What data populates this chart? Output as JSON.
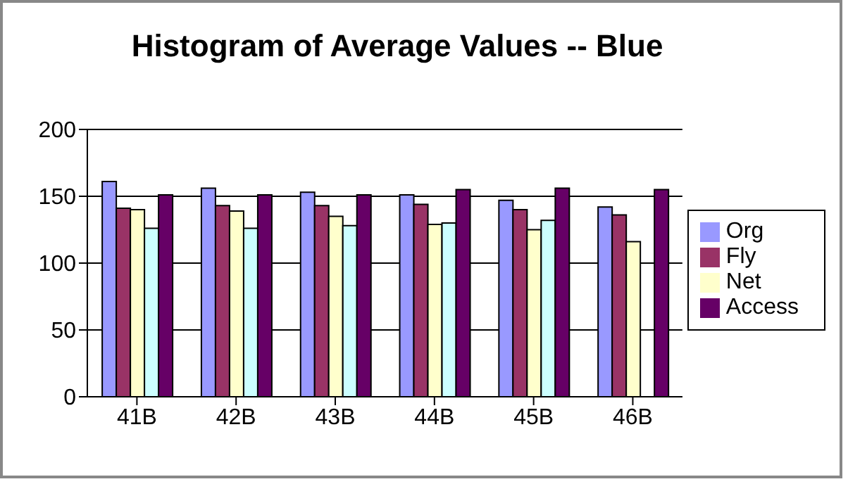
{
  "chart_data": {
    "type": "bar",
    "title": "Histogram of Average Values -- Blue",
    "categories": [
      "41B",
      "42B",
      "43B",
      "44B",
      "45B",
      "46B"
    ],
    "series": [
      {
        "name": "Org",
        "color": "#9999ff",
        "values": [
          161,
          156,
          153,
          151,
          147,
          142
        ]
      },
      {
        "name": "Fly",
        "color": "#993366",
        "values": [
          141,
          143,
          143,
          144,
          140,
          136
        ]
      },
      {
        "name": "Net",
        "color": "#ffffcc",
        "values": [
          140,
          139,
          135,
          129,
          125,
          116
        ]
      },
      {
        "color": "#ccffff",
        "values": [
          126,
          126,
          128,
          130,
          132,
          null
        ]
      },
      {
        "name": "Access",
        "color": "#660066",
        "values": [
          151,
          151,
          151,
          155,
          156,
          155
        ]
      }
    ],
    "ylim": [
      0,
      200
    ],
    "yticks": [
      0,
      50,
      100,
      150,
      200
    ],
    "grid": "y",
    "legend": "right"
  }
}
